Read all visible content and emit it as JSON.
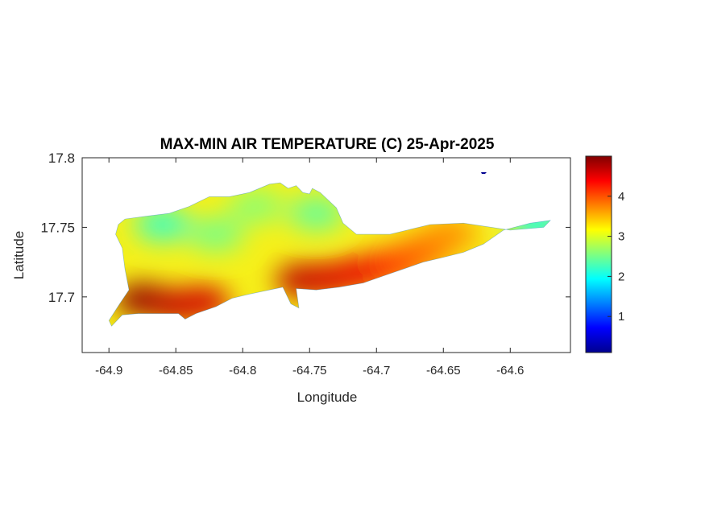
{
  "chart_data": {
    "type": "heatmap",
    "title": "MAX-MIN AIR TEMPERATURE (C) 25-Apr-2025",
    "xlabel": "Longitude",
    "ylabel": "Latitude",
    "xlim": [
      -64.92,
      -64.555
    ],
    "ylim": [
      17.66,
      17.8
    ],
    "xticks": [
      -64.9,
      -64.85,
      -64.8,
      -64.75,
      -64.7,
      -64.65,
      -64.6
    ],
    "xtick_labels": [
      "-64.9",
      "-64.85",
      "-64.8",
      "-64.75",
      "-64.7",
      "-64.65",
      "-64.6"
    ],
    "yticks": [
      17.7,
      17.75,
      17.8
    ],
    "ytick_labels": [
      "17.7",
      "17.75",
      "17.8"
    ],
    "colorbar": {
      "range": [
        0.1,
        5.0
      ],
      "ticks": [
        1,
        2,
        3,
        4
      ],
      "tick_labels": [
        "1",
        "2",
        "3",
        "4"
      ],
      "colormap": "jet"
    },
    "grid": false,
    "island_outline": [
      [
        -64.898,
        17.679
      ],
      [
        -64.89,
        17.687
      ],
      [
        -64.878,
        17.688
      ],
      [
        -64.862,
        17.688
      ],
      [
        -64.848,
        17.688
      ],
      [
        -64.843,
        17.684
      ],
      [
        -64.835,
        17.688
      ],
      [
        -64.82,
        17.693
      ],
      [
        -64.808,
        17.699
      ],
      [
        -64.795,
        17.702
      ],
      [
        -64.78,
        17.705
      ],
      [
        -64.77,
        17.707
      ],
      [
        -64.764,
        17.695
      ],
      [
        -64.758,
        17.692
      ],
      [
        -64.76,
        17.706
      ],
      [
        -64.745,
        17.705
      ],
      [
        -64.728,
        17.707
      ],
      [
        -64.71,
        17.71
      ],
      [
        -64.695,
        17.715
      ],
      [
        -64.68,
        17.72
      ],
      [
        -64.665,
        17.725
      ],
      [
        -64.652,
        17.728
      ],
      [
        -64.635,
        17.732
      ],
      [
        -64.62,
        17.738
      ],
      [
        -64.605,
        17.748
      ],
      [
        -64.585,
        17.753
      ],
      [
        -64.57,
        17.755
      ],
      [
        -64.575,
        17.75
      ],
      [
        -64.6,
        17.748
      ],
      [
        -64.635,
        17.753
      ],
      [
        -64.66,
        17.752
      ],
      [
        -64.69,
        17.745
      ],
      [
        -64.715,
        17.745
      ],
      [
        -64.725,
        17.753
      ],
      [
        -64.73,
        17.764
      ],
      [
        -64.742,
        17.775
      ],
      [
        -64.748,
        17.778
      ],
      [
        -64.75,
        17.774
      ],
      [
        -64.755,
        17.775
      ],
      [
        -64.76,
        17.78
      ],
      [
        -64.766,
        17.778
      ],
      [
        -64.772,
        17.782
      ],
      [
        -64.78,
        17.781
      ],
      [
        -64.795,
        17.775
      ],
      [
        -64.81,
        17.772
      ],
      [
        -64.825,
        17.772
      ],
      [
        -64.84,
        17.765
      ],
      [
        -64.855,
        17.76
      ],
      [
        -64.872,
        17.758
      ],
      [
        -64.888,
        17.756
      ],
      [
        -64.893,
        17.752
      ],
      [
        -64.895,
        17.745
      ],
      [
        -64.89,
        17.735
      ],
      [
        -64.888,
        17.72
      ],
      [
        -64.885,
        17.705
      ],
      [
        -64.892,
        17.695
      ],
      [
        -64.9,
        17.683
      ]
    ],
    "hotspots": [
      {
        "lon": -64.875,
        "lat": 17.698,
        "value": 4.9
      },
      {
        "lon": -64.85,
        "lat": 17.694,
        "value": 4.7
      },
      {
        "lon": -64.83,
        "lat": 17.696,
        "value": 4.6
      },
      {
        "lon": -64.755,
        "lat": 17.712,
        "value": 4.7
      },
      {
        "lon": -64.735,
        "lat": 17.713,
        "value": 4.6
      },
      {
        "lon": -64.71,
        "lat": 17.718,
        "value": 4.5
      },
      {
        "lon": -64.685,
        "lat": 17.724,
        "value": 4.2
      },
      {
        "lon": -64.665,
        "lat": 17.733,
        "value": 3.9
      },
      {
        "lon": -64.645,
        "lat": 17.745,
        "value": 3.7
      },
      {
        "lon": -64.82,
        "lat": 17.745,
        "value": 2.5
      },
      {
        "lon": -64.86,
        "lat": 17.752,
        "value": 2.2
      },
      {
        "lon": -64.79,
        "lat": 17.765,
        "value": 2.6
      },
      {
        "lon": -64.745,
        "lat": 17.76,
        "value": 2.4
      },
      {
        "lon": -64.58,
        "lat": 17.753,
        "value": 2.0
      }
    ]
  }
}
